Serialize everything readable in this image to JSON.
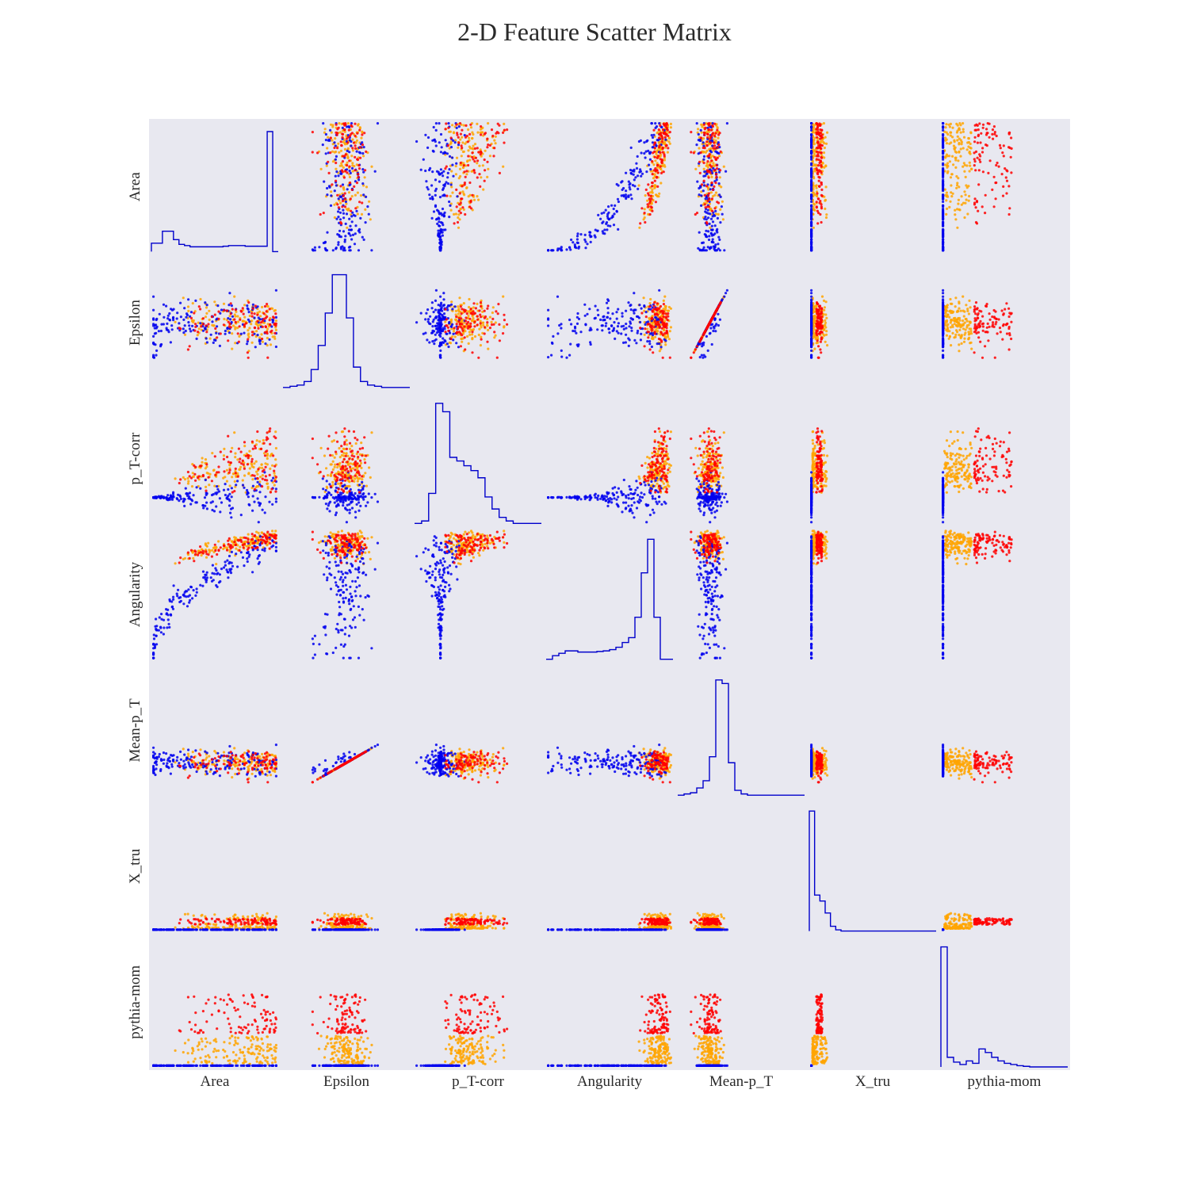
{
  "chart_data": {
    "type": "scatter",
    "subtype": "scatter-matrix",
    "title": "2-D Feature Scatter Matrix",
    "variables": [
      "Area",
      "Epsilon",
      "p_T-corr",
      "Angularity",
      "Mean-p_T",
      "X_tru",
      "pythia-mom"
    ],
    "diagonal": "step-histogram",
    "grid": false,
    "legend": "none",
    "colors": {
      "panel_background": "#e8e8f0",
      "series_blue": "#0000ee",
      "series_orange": "#ffa500",
      "series_red": "#ff0000",
      "histogram_line": "#0000cc"
    },
    "series": [
      {
        "color": "blue",
        "description_hint": "X_tru = 0"
      },
      {
        "color": "orange",
        "description_hint": "low pythia-mom"
      },
      {
        "color": "red",
        "description_hint": "high pythia-mom"
      }
    ],
    "histograms": {
      "Area": [
        0.07,
        0.07,
        0.17,
        0.17,
        0.1,
        0.06,
        0.05,
        0.04,
        0.04,
        0.04,
        0.04,
        0.04,
        0.04,
        0.045,
        0.05,
        0.05,
        0.05,
        0.045,
        0.045,
        0.045,
        0.045,
        1.0,
        0.0
      ],
      "Epsilon": [
        0.0,
        0.01,
        0.02,
        0.05,
        0.15,
        0.35,
        0.62,
        0.94,
        0.94,
        0.58,
        0.17,
        0.05,
        0.02,
        0.01,
        0.0,
        0.0,
        0.0,
        0.0
      ],
      "p_T-corr": [
        0.0,
        0.02,
        0.25,
        1.0,
        0.93,
        0.55,
        0.52,
        0.48,
        0.44,
        0.38,
        0.22,
        0.12,
        0.05,
        0.02,
        0.0,
        0.0,
        0.0,
        0.0
      ],
      "Angularity": [
        0.0,
        0.03,
        0.05,
        0.07,
        0.07,
        0.06,
        0.06,
        0.06,
        0.065,
        0.07,
        0.08,
        0.1,
        0.14,
        0.18,
        0.35,
        0.72,
        1.0,
        0.35,
        0.0,
        0.0
      ],
      "Mean-p_T": [
        0.0,
        0.01,
        0.02,
        0.06,
        0.12,
        0.32,
        0.96,
        0.93,
        0.27,
        0.04,
        0.01,
        0.0,
        0.0,
        0.0,
        0.0,
        0.0,
        0.0,
        0.0,
        0.0,
        0.0
      ],
      "X_tru": [
        1.0,
        0.3,
        0.25,
        0.15,
        0.04,
        0.01,
        0.0,
        0.0,
        0.0,
        0.0,
        0.0,
        0.0,
        0.0,
        0.0,
        0.0,
        0.0,
        0.0,
        0.0,
        0.0,
        0.0,
        0.0,
        0.0,
        0.0,
        0.0
      ],
      "pythia-mom": [
        1.0,
        0.08,
        0.04,
        0.02,
        0.05,
        0.03,
        0.15,
        0.12,
        0.08,
        0.05,
        0.03,
        0.02,
        0.01,
        0.005,
        0.0,
        0.0,
        0.0,
        0.0,
        0.0,
        0.0
      ]
    }
  }
}
